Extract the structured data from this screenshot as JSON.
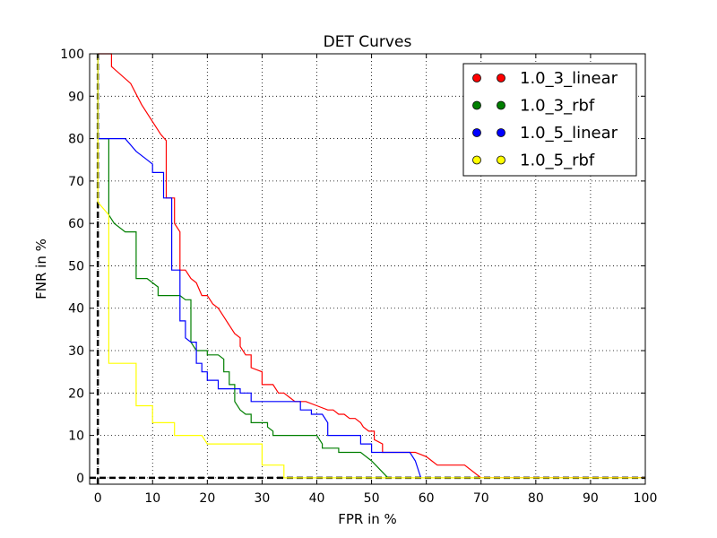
{
  "chart_data": {
    "type": "line",
    "title": "DET Curves",
    "xlabel": "FPR in %",
    "ylabel": "FNR in %",
    "xlim": [
      -1.5,
      100
    ],
    "ylim": [
      -1.5,
      100
    ],
    "x_ticks": [
      0,
      10,
      20,
      30,
      40,
      50,
      60,
      70,
      80,
      90,
      100
    ],
    "y_ticks": [
      0,
      10,
      20,
      30,
      40,
      50,
      60,
      70,
      80,
      90,
      100
    ],
    "grid": true,
    "legend_position": "top-right",
    "series": [
      {
        "name": "1.0_3_linear",
        "color": "#ff0000",
        "points": [
          [
            0,
            100
          ],
          [
            2.5,
            100
          ],
          [
            2.5,
            97
          ],
          [
            6,
            93
          ],
          [
            8,
            88
          ],
          [
            10,
            84
          ],
          [
            11.5,
            81
          ],
          [
            12.5,
            79.5
          ],
          [
            12.5,
            66
          ],
          [
            14,
            66
          ],
          [
            14,
            60
          ],
          [
            15,
            58
          ],
          [
            15,
            49
          ],
          [
            16,
            49
          ],
          [
            17,
            47
          ],
          [
            18,
            46
          ],
          [
            19,
            43
          ],
          [
            20,
            43
          ],
          [
            21,
            41
          ],
          [
            22,
            40
          ],
          [
            23,
            38
          ],
          [
            24,
            36
          ],
          [
            25,
            34
          ],
          [
            26,
            33
          ],
          [
            26,
            31
          ],
          [
            27,
            29
          ],
          [
            28,
            29
          ],
          [
            28,
            26
          ],
          [
            30,
            25
          ],
          [
            30,
            22
          ],
          [
            32,
            22
          ],
          [
            33,
            20
          ],
          [
            34,
            20
          ],
          [
            35,
            19
          ],
          [
            36,
            18
          ],
          [
            38,
            18
          ],
          [
            40,
            17
          ],
          [
            42,
            16
          ],
          [
            43,
            16
          ],
          [
            44,
            15
          ],
          [
            45,
            15
          ],
          [
            46,
            14
          ],
          [
            47,
            14
          ],
          [
            48,
            13
          ],
          [
            48.5,
            12
          ],
          [
            49.5,
            11
          ],
          [
            50.5,
            11
          ],
          [
            50.5,
            9
          ],
          [
            52,
            8
          ],
          [
            52,
            6
          ],
          [
            58,
            6
          ],
          [
            60,
            5
          ],
          [
            61,
            4
          ],
          [
            62,
            3
          ],
          [
            67,
            3
          ],
          [
            70,
            0
          ],
          [
            100,
            0
          ]
        ],
        "legend": "1.0_3_linear"
      },
      {
        "name": "1.0_3_rbf",
        "color": "#007f00",
        "points": [
          [
            0,
            100
          ],
          [
            0,
            80
          ],
          [
            2,
            80
          ],
          [
            2,
            62
          ],
          [
            3,
            60
          ],
          [
            5,
            58
          ],
          [
            7,
            58
          ],
          [
            7,
            47
          ],
          [
            9,
            47
          ],
          [
            11,
            45
          ],
          [
            11,
            43
          ],
          [
            15,
            43
          ],
          [
            16,
            42
          ],
          [
            17,
            42
          ],
          [
            17,
            32
          ],
          [
            18,
            30
          ],
          [
            20,
            30
          ],
          [
            20,
            29
          ],
          [
            22,
            29
          ],
          [
            23,
            28
          ],
          [
            23,
            25
          ],
          [
            24,
            25
          ],
          [
            24,
            22
          ],
          [
            25,
            22
          ],
          [
            25,
            18
          ],
          [
            26,
            16
          ],
          [
            27,
            15
          ],
          [
            28,
            15
          ],
          [
            28,
            13
          ],
          [
            31,
            13
          ],
          [
            31,
            12
          ],
          [
            32,
            11
          ],
          [
            32,
            10
          ],
          [
            40,
            10
          ],
          [
            41,
            8
          ],
          [
            41,
            7
          ],
          [
            44,
            7
          ],
          [
            44,
            6
          ],
          [
            48,
            6
          ],
          [
            50,
            4
          ],
          [
            53,
            0
          ]
        ],
        "legend": "1.0_3_rbf"
      },
      {
        "name": "1.0_5_linear",
        "color": "#0000ff",
        "points": [
          [
            0,
            100
          ],
          [
            0,
            80
          ],
          [
            5,
            80
          ],
          [
            7,
            77
          ],
          [
            9,
            75
          ],
          [
            10,
            74
          ],
          [
            10,
            72
          ],
          [
            12,
            72
          ],
          [
            12,
            66
          ],
          [
            13.5,
            66
          ],
          [
            13.5,
            49
          ],
          [
            15,
            49
          ],
          [
            15,
            37
          ],
          [
            16,
            37
          ],
          [
            16,
            33
          ],
          [
            17,
            32
          ],
          [
            18,
            32
          ],
          [
            18,
            27
          ],
          [
            19,
            27
          ],
          [
            19,
            25
          ],
          [
            20,
            25
          ],
          [
            20,
            23
          ],
          [
            22,
            23
          ],
          [
            22,
            21
          ],
          [
            26,
            21
          ],
          [
            26,
            20
          ],
          [
            28,
            20
          ],
          [
            28,
            18
          ],
          [
            35,
            18
          ],
          [
            37,
            18
          ],
          [
            37,
            16
          ],
          [
            39,
            16
          ],
          [
            39,
            15
          ],
          [
            41,
            15
          ],
          [
            42,
            13
          ],
          [
            42,
            10
          ],
          [
            48,
            10
          ],
          [
            48,
            8
          ],
          [
            50,
            8
          ],
          [
            50,
            6
          ],
          [
            54,
            6
          ],
          [
            57,
            6
          ],
          [
            58,
            4
          ],
          [
            59,
            0
          ]
        ],
        "legend": "1.0_5_linear"
      },
      {
        "name": "1.0_5_rbf",
        "color": "#ffff00",
        "points": [
          [
            0,
            100
          ],
          [
            0,
            65
          ],
          [
            2,
            62
          ],
          [
            2,
            27
          ],
          [
            7,
            27
          ],
          [
            7,
            17
          ],
          [
            10,
            17
          ],
          [
            10,
            13
          ],
          [
            14,
            13
          ],
          [
            14,
            10
          ],
          [
            19,
            10
          ],
          [
            20,
            8
          ],
          [
            21,
            8
          ],
          [
            30,
            8
          ],
          [
            30,
            3
          ],
          [
            34,
            3
          ],
          [
            34,
            0
          ],
          [
            100,
            0
          ]
        ],
        "legend": "1.0_5_rbf"
      }
    ]
  }
}
